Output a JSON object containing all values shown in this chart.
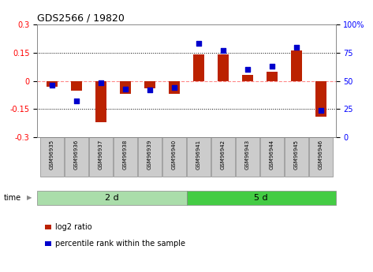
{
  "title": "GDS2566 / 19820",
  "samples": [
    "GSM96935",
    "GSM96936",
    "GSM96937",
    "GSM96938",
    "GSM96939",
    "GSM96940",
    "GSM96941",
    "GSM96942",
    "GSM96943",
    "GSM96944",
    "GSM96945",
    "GSM96946"
  ],
  "log2_ratio": [
    -0.03,
    -0.05,
    -0.22,
    -0.07,
    -0.04,
    -0.07,
    0.14,
    0.14,
    0.03,
    0.05,
    0.16,
    -0.19
  ],
  "percentile_rank": [
    46,
    32,
    48,
    43,
    42,
    44,
    83,
    77,
    60,
    63,
    80,
    24
  ],
  "groups": [
    {
      "label": "2 d",
      "start": 0,
      "end": 6,
      "color": "#aaddaa"
    },
    {
      "label": "5 d",
      "start": 6,
      "end": 12,
      "color": "#44cc44"
    }
  ],
  "ylim_left": [
    -0.3,
    0.3
  ],
  "ylim_right": [
    0,
    100
  ],
  "yticks_left": [
    -0.3,
    -0.15,
    0.0,
    0.15,
    0.3
  ],
  "yticks_right": [
    0,
    25,
    50,
    75,
    100
  ],
  "bar_color_red": "#BB2200",
  "bar_color_blue": "#0000CC",
  "zero_line_color": "#FF8888",
  "background_color": "#FFFFFF",
  "legend_items": [
    {
      "color": "#BB2200",
      "label": "log2 ratio"
    },
    {
      "color": "#0000CC",
      "label": "percentile rank within the sample"
    }
  ],
  "time_label": "time",
  "bar_width": 0.45,
  "sample_box_color": "#CCCCCC"
}
